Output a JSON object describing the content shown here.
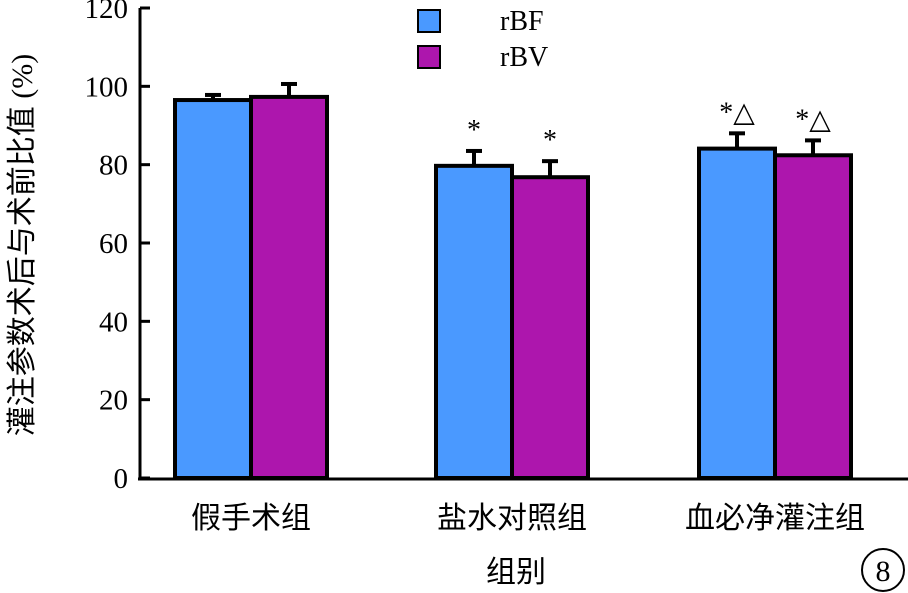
{
  "chart_data": {
    "type": "bar",
    "title": "",
    "xlabel": "组别",
    "ylabel": "灌注参数术后与术前比值 (%)",
    "categories": [
      "假手术组",
      "盐水对照组",
      "血必净灌注组"
    ],
    "series": [
      {
        "name": "rBF",
        "color": "#4a99ff",
        "values": [
          96.5,
          79.7,
          84.1
        ],
        "errors": [
          1.3,
          3.8,
          3.9
        ],
        "annotations": [
          "",
          "*",
          "*△"
        ]
      },
      {
        "name": "rBV",
        "color": "#ad16ad",
        "values": [
          97.3,
          76.8,
          82.4
        ],
        "errors": [
          3.3,
          4.1,
          3.8
        ],
        "annotations": [
          "",
          "*",
          "*△"
        ]
      }
    ],
    "ylim": [
      0,
      120
    ],
    "yticks": [
      0,
      20,
      40,
      60,
      80,
      100,
      120
    ],
    "grid": false,
    "legend": "top-center",
    "figure_label": "8"
  }
}
